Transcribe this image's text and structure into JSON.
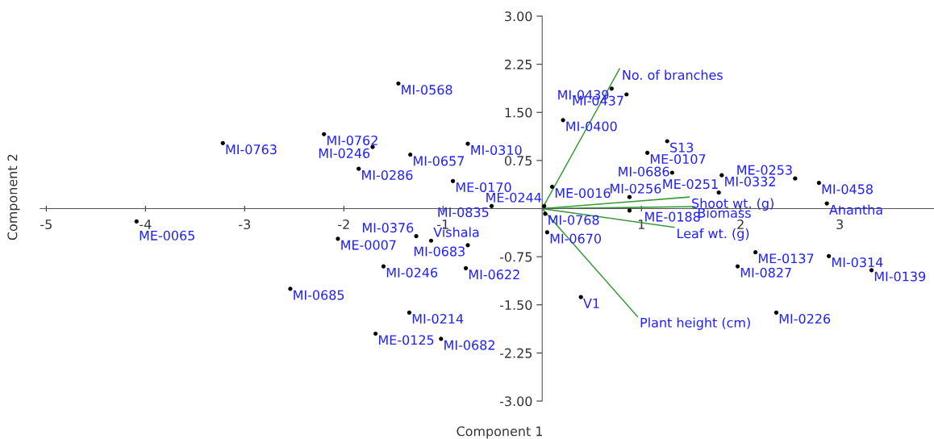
{
  "chart_data": {
    "type": "scatter",
    "xlabel": "Component 1",
    "ylabel": "Component 2",
    "xlim": [
      -5.06,
      3.95
    ],
    "ylim": [
      -3,
      3
    ],
    "xticks": [
      -5,
      -4,
      -3,
      -2,
      -1,
      1,
      2,
      3
    ],
    "yticks": [
      {
        "value": 3,
        "label": "3.00"
      },
      {
        "value": 2.25,
        "label": "2.25"
      },
      {
        "value": 1.5,
        "label": "1.50"
      },
      {
        "value": 0.75,
        "label": "0.75"
      },
      {
        "value": -0.75,
        "label": "-0.75"
      },
      {
        "value": -1.5,
        "label": "-1.50"
      },
      {
        "value": -2.25,
        "label": "-2.25"
      },
      {
        "value": -3,
        "label": "-3.00"
      }
    ],
    "grid": false,
    "legend": false,
    "marker": "circle",
    "series": [
      {
        "type": "scatter",
        "color": "#000000",
        "x": [
          -1.45,
          -2.2,
          -3.22,
          -1.71,
          -1.33,
          -1.85,
          -0.75,
          -0.9,
          -0.51,
          0.02,
          0.1,
          0.7,
          0.85,
          0.21,
          1.26,
          1.06,
          1.31,
          0.88,
          1.81,
          1.78,
          2.55,
          2.79,
          2.87,
          0.88,
          0.03,
          0.05,
          0.39,
          2.15,
          1.97,
          2.89,
          3.32,
          2.36,
          -4.09,
          -2.06,
          -1.27,
          -1.12,
          -1.6,
          -2.54,
          -1.34,
          -1.68,
          -1.02,
          -0.75,
          -0.77
        ],
        "values": [
          1.95,
          1.16,
          1.02,
          0.96,
          0.84,
          0.62,
          1.01,
          0.43,
          0.04,
          0.04,
          0.34,
          1.87,
          1.78,
          1.38,
          1.05,
          0.87,
          0.56,
          0.18,
          0.52,
          0.25,
          0.47,
          0.4,
          0.08,
          -0.03,
          -0.08,
          -0.37,
          -1.38,
          -0.68,
          -0.9,
          -0.74,
          -0.96,
          -1.62,
          -0.2,
          -0.47,
          -0.43,
          -0.5,
          -0.9,
          -1.25,
          -1.62,
          -1.95,
          -2.03,
          -0.57,
          -0.93
        ]
      },
      {
        "type": "line",
        "name": "No. of branches",
        "color": "#3a9a3a",
        "marker": "none",
        "x": [
          0,
          0.78
        ],
        "values": [
          0,
          2.18
        ]
      },
      {
        "type": "line",
        "name": "Shoot wt. (g)",
        "color": "#3a9a3a",
        "marker": "none",
        "x": [
          0,
          1.48
        ],
        "values": [
          0,
          0.18
        ]
      },
      {
        "type": "line",
        "name": "Biomass",
        "color": "#3a9a3a",
        "marker": "none",
        "x": [
          0,
          1.54
        ],
        "values": [
          0,
          0.03
        ]
      },
      {
        "type": "line",
        "name": "Leaf wt. (g)",
        "color": "#3a9a3a",
        "marker": "none",
        "x": [
          0,
          1.33
        ],
        "values": [
          0,
          -0.29
        ]
      },
      {
        "type": "line",
        "name": "Plant height (cm)",
        "color": "#3a9a3a",
        "marker": "none",
        "x": [
          0,
          0.96
        ],
        "values": [
          0,
          -1.68
        ]
      }
    ],
    "annotations": [
      {
        "text": "MI-0568",
        "x": -1.45,
        "y": 1.95
      },
      {
        "text": "MI-0762",
        "x": -2.2,
        "y": 1.16
      },
      {
        "text": "MI-0763",
        "x": -3.22,
        "y": 1.02
      },
      {
        "text": "MI-0246",
        "x": -1.71,
        "y": 0.96
      },
      {
        "text": "MI-0657",
        "x": -1.33,
        "y": 0.84
      },
      {
        "text": "MI-0286",
        "x": -1.85,
        "y": 0.62
      },
      {
        "text": "MI-0310",
        "x": -0.75,
        "y": 1.01
      },
      {
        "text": "ME-0170",
        "x": -0.9,
        "y": 0.43
      },
      {
        "text": "MI-0835",
        "x": -0.51,
        "y": 0.04
      },
      {
        "text": "ME-0244",
        "x": 0.02,
        "y": 0.04
      },
      {
        "text": "ME-0016",
        "x": 0.1,
        "y": 0.34
      },
      {
        "text": "MI-0439",
        "x": 0.7,
        "y": 1.87
      },
      {
        "text": "MI-0437",
        "x": 0.85,
        "y": 1.78
      },
      {
        "text": "MI-0400",
        "x": 0.21,
        "y": 1.38
      },
      {
        "text": "S13",
        "x": 1.26,
        "y": 1.05
      },
      {
        "text": "ME-0107",
        "x": 1.06,
        "y": 0.87
      },
      {
        "text": "MI-0686",
        "x": 1.31,
        "y": 0.56
      },
      {
        "text": "MI-0256",
        "x": 0.88,
        "y": 0.18
      },
      {
        "text": "MI-0332",
        "x": 1.81,
        "y": 0.52
      },
      {
        "text": "ME-0251",
        "x": 1.78,
        "y": 0.25
      },
      {
        "text": "ME-0253",
        "x": 2.55,
        "y": 0.47
      },
      {
        "text": "MI-0458",
        "x": 2.79,
        "y": 0.4
      },
      {
        "text": "Anantha",
        "x": 2.87,
        "y": 0.08
      },
      {
        "text": "ME-0188",
        "x": 0.88,
        "y": -0.03
      },
      {
        "text": "MI-0768",
        "x": 0.03,
        "y": -0.08
      },
      {
        "text": "MI-0670",
        "x": 0.05,
        "y": -0.37
      },
      {
        "text": "V1",
        "x": 0.39,
        "y": -1.38
      },
      {
        "text": "ME-0137",
        "x": 2.15,
        "y": -0.68
      },
      {
        "text": "MI-0827",
        "x": 1.97,
        "y": -0.9
      },
      {
        "text": "MI-0314",
        "x": 2.89,
        "y": -0.74
      },
      {
        "text": "MI-0139",
        "x": 3.32,
        "y": -0.96
      },
      {
        "text": "MI-0226",
        "x": 2.36,
        "y": -1.62
      },
      {
        "text": "ME-0065",
        "x": -4.09,
        "y": -0.2
      },
      {
        "text": "ME-0007",
        "x": -2.06,
        "y": -0.47
      },
      {
        "text": "MI-0376",
        "x": -1.27,
        "y": -0.43
      },
      {
        "text": "Vishala",
        "x": -1.12,
        "y": -0.5
      },
      {
        "text": "MI-0246",
        "x": -1.6,
        "y": -0.9
      },
      {
        "text": "MI-0685",
        "x": -2.54,
        "y": -1.25
      },
      {
        "text": "MI-0214",
        "x": -1.34,
        "y": -1.62
      },
      {
        "text": "ME-0125",
        "x": -1.68,
        "y": -1.95
      },
      {
        "text": "MI-0682",
        "x": -1.02,
        "y": -2.03
      },
      {
        "text": "MI-0683",
        "x": -0.75,
        "y": -0.57
      },
      {
        "text": "MI-0622",
        "x": -0.77,
        "y": -0.93
      }
    ]
  }
}
